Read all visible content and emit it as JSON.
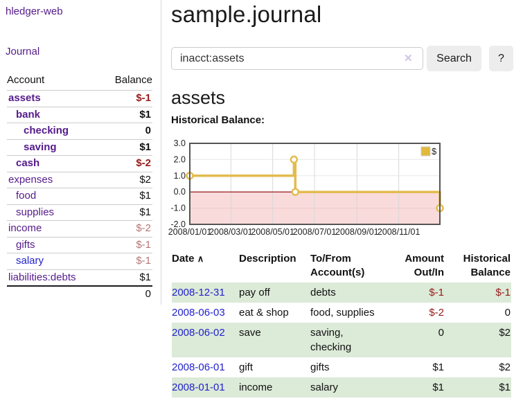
{
  "sidebar": {
    "brand": "hledger-web",
    "journal_link": "Journal",
    "header": {
      "account": "Account",
      "balance": "Balance"
    },
    "accounts": [
      {
        "name": "assets",
        "balance": "$-1"
      },
      {
        "name": "bank",
        "balance": "$1"
      },
      {
        "name": "checking",
        "balance": "0"
      },
      {
        "name": "saving",
        "balance": "$1"
      },
      {
        "name": "cash",
        "balance": "$-2"
      },
      {
        "name": "expenses",
        "balance": "$2"
      },
      {
        "name": "food",
        "balance": "$1"
      },
      {
        "name": "supplies",
        "balance": "$1"
      },
      {
        "name": "income",
        "balance": "$-2"
      },
      {
        "name": "gifts",
        "balance": "$-1"
      },
      {
        "name": "salary",
        "balance": "$-1"
      },
      {
        "name": "liabilities:debts",
        "balance": "$1"
      }
    ],
    "total": "0"
  },
  "main": {
    "title": "sample.journal",
    "search": {
      "value": "inacct:assets",
      "clear_icon": "✕",
      "search_button": "Search",
      "help_button": "?"
    },
    "account_heading": "assets",
    "chart_heading": "Historical Balance:"
  },
  "chart_data": {
    "type": "line",
    "title": "Historical Balance",
    "step": "after",
    "ylim": [
      -2,
      3
    ],
    "x_max_day": 365,
    "yticks": [
      3,
      2,
      1,
      0,
      -1,
      -2
    ],
    "xticks": [
      {
        "label": "2008/01/01",
        "day": 0
      },
      {
        "label": "2008/03/01",
        "day": 60
      },
      {
        "label": "2008/05/01",
        "day": 121
      },
      {
        "label": "2008/07/01",
        "day": 182
      },
      {
        "label": "2008/09/01",
        "day": 244
      },
      {
        "label": "2008/11/01",
        "day": 305
      }
    ],
    "series": [
      {
        "name": "$",
        "points": [
          {
            "date": "2008-01-01",
            "day": 0,
            "value": 1
          },
          {
            "date": "2008-06-01",
            "day": 152,
            "value": 2
          },
          {
            "date": "2008-06-03",
            "day": 154,
            "value": 0
          },
          {
            "date": "2008-12-31",
            "day": 365,
            "value": -1
          }
        ]
      }
    ],
    "legend_position": "top-right",
    "colors": {
      "line": "#e2bc4f",
      "legend_fill": "#e2b93c",
      "legend_border": "#cccccc",
      "zero_line": "#8b0000",
      "negative_fill": "#f9dbdb",
      "grid": "#d8d8d8",
      "border": "#555555"
    }
  },
  "transactions": {
    "headers": {
      "date": "Date",
      "sort_indicator": "∧",
      "description": "Description",
      "tofrom": "To/From Account(s)",
      "amount": "Amount Out/In",
      "balance": "Historical Balance"
    },
    "rows": [
      {
        "date": "2008-12-31",
        "description": "pay off",
        "accounts": "debts",
        "amount": "$-1",
        "balance": "$-1"
      },
      {
        "date": "2008-06-03",
        "description": "eat & shop",
        "accounts": "food, supplies",
        "amount": "$-2",
        "balance": "0"
      },
      {
        "date": "2008-06-02",
        "description": "save",
        "accounts": "saving, checking",
        "amount": "0",
        "balance": "$2"
      },
      {
        "date": "2008-06-01",
        "description": "gift",
        "accounts": "gifts",
        "amount": "$1",
        "balance": "$2"
      },
      {
        "date": "2008-01-01",
        "description": "income",
        "accounts": "salary",
        "amount": "$1",
        "balance": "$1"
      }
    ]
  },
  "colors": {
    "link_purple": "#551A8B",
    "link_blue": "#2222CC",
    "negative_strong": "#971a1a",
    "negative_muted": "#b67676",
    "row_green": "#dcead8",
    "button_bg": "#ededed"
  }
}
